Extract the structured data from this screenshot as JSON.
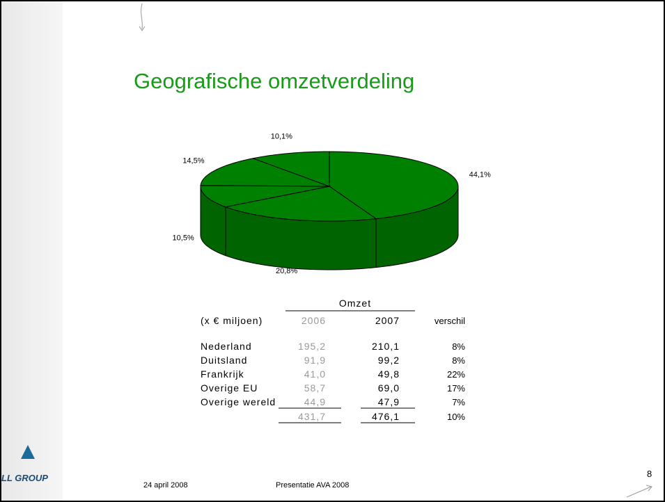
{
  "title": "Geografische omzetverdeling",
  "chart_data": {
    "type": "pie",
    "values": [
      44.1,
      20.8,
      10.5,
      14.5,
      10.1
    ],
    "value_labels": [
      "44,1%",
      "20,8%",
      "10,5%",
      "14,5%",
      "10,1%"
    ],
    "color": "#008000"
  },
  "table": {
    "group_header": "Omzet",
    "columns": [
      "(x € miljoen)",
      "2006",
      "2007",
      "verschil"
    ],
    "rows": [
      [
        "Nederland",
        "195,2",
        "210,1",
        "8%"
      ],
      [
        "Duitsland",
        "91,9",
        "99,2",
        "8%"
      ],
      [
        "Frankrijk",
        "41,0",
        "49,8",
        "22%"
      ],
      [
        "Overige EU",
        "58,7",
        "69,0",
        "17%"
      ],
      [
        "Overige wereld",
        "44,9",
        "47,9",
        "7%"
      ]
    ],
    "total": [
      "431,7",
      "476,1",
      "10%"
    ]
  },
  "footer": {
    "date": "24 april 2008",
    "event": "Presentatie AVA 2008",
    "page": "8"
  },
  "logo_text": "LL GROUP"
}
